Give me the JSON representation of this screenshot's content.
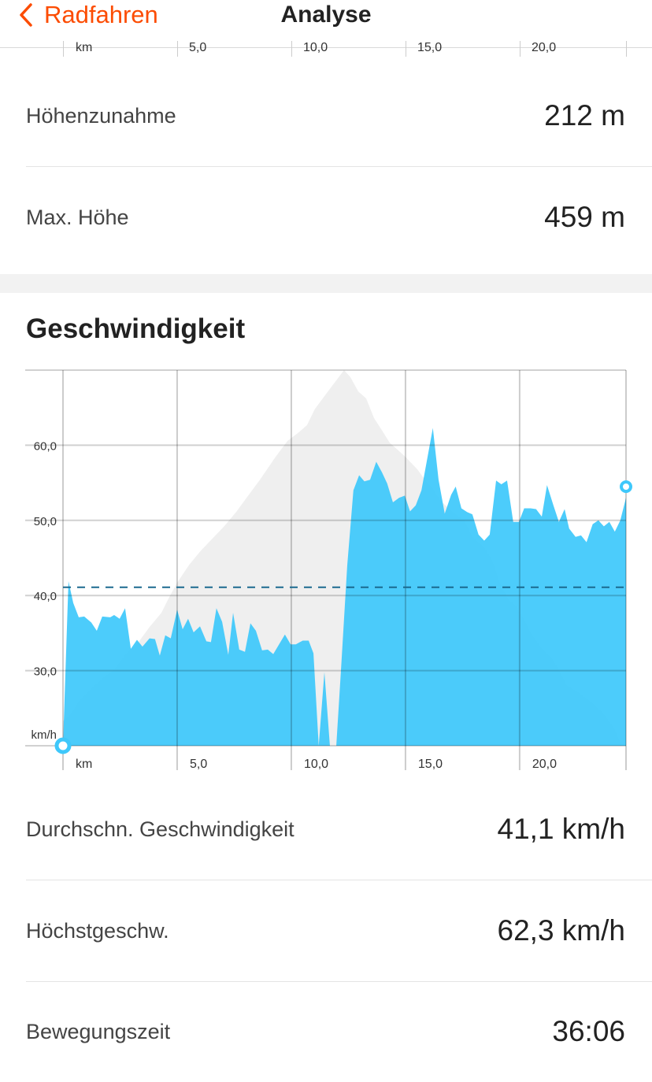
{
  "header": {
    "back_label": "Radfahren",
    "title": "Analyse",
    "back_icon": "chevron-left-icon",
    "accent_color": "#fc4c02"
  },
  "previous_chart_axis": {
    "x_tick_labels": [
      "km",
      "5,0",
      "10,0",
      "15,0",
      "20,0"
    ]
  },
  "elevation_stats": [
    {
      "label": "Höhenzunahme",
      "value": "212 m"
    },
    {
      "label": "Max. Höhe",
      "value": "459 m"
    }
  ],
  "speed_section": {
    "title": "Geschwindigkeit",
    "stats": [
      {
        "label": "Durchschn. Geschwindigkeit",
        "value": "41,1 km/h"
      },
      {
        "label": "Höchstgeschw.",
        "value": "62,3 km/h"
      },
      {
        "label": "Bewegungszeit",
        "value": "36:06"
      }
    ]
  },
  "chart_data": {
    "type": "area",
    "xlabel": "km",
    "ylabel": "km/h",
    "xlim": [
      0,
      24.66
    ],
    "ylim": [
      20,
      70
    ],
    "x_ticks": [
      0,
      5,
      10,
      15,
      20
    ],
    "x_tick_labels": [
      "km",
      "5,0",
      "10,0",
      "15,0",
      "20,0"
    ],
    "y_ticks": [
      20,
      30,
      40,
      50,
      60
    ],
    "y_tick_labels": [
      "km/h",
      "30,0",
      "40,0",
      "50,0",
      "60,0"
    ],
    "grid": true,
    "average_line": 41.1,
    "colors": {
      "speed": "#3ec8fb",
      "elevation": "#efefef",
      "average": "#1b6a8f"
    },
    "speed": {
      "x": [
        0,
        0.24,
        0.45,
        0.69,
        0.93,
        1.24,
        1.48,
        1.72,
        2.07,
        2.24,
        2.48,
        2.72,
        2.97,
        3.24,
        3.48,
        3.79,
        4.03,
        4.24,
        4.48,
        4.72,
        5,
        5.24,
        5.48,
        5.72,
        6,
        6.28,
        6.48,
        6.72,
        6.97,
        7.24,
        7.45,
        7.72,
        7.97,
        8.21,
        8.45,
        8.72,
        8.97,
        9.21,
        9.72,
        9.97,
        10.2,
        10.5,
        10.76,
        10.97,
        11.2,
        11.45,
        11.69,
        11.97,
        12.17,
        12.45,
        12.72,
        12.97,
        13.2,
        13.45,
        13.72,
        13.97,
        14.2,
        14.45,
        14.72,
        14.97,
        15.2,
        15.45,
        15.7,
        16.2,
        16.45,
        16.72,
        17,
        17.2,
        17.45,
        17.7,
        17.93,
        18.2,
        18.45,
        18.69,
        18.97,
        19.2,
        19.45,
        19.72,
        19.97,
        20.2,
        20.48,
        20.72,
        20.97,
        21.2,
        21.48,
        21.72,
        21.97,
        22.17,
        22.45,
        22.69,
        22.93,
        23.2,
        23.45,
        23.69,
        23.93,
        24.17,
        24.41,
        24.66
      ],
      "y": [
        20,
        41.9,
        39,
        37.1,
        37.2,
        36.4,
        35.3,
        37.2,
        37.1,
        37.4,
        36.9,
        38.3,
        32.9,
        34.1,
        33.2,
        34.3,
        34.2,
        32,
        34.7,
        34.3,
        38.1,
        35.5,
        36.9,
        35.1,
        35.9,
        33.9,
        33.8,
        38.3,
        36.5,
        32.1,
        37.7,
        32.8,
        32.5,
        36.3,
        35.3,
        32.7,
        32.8,
        32.2,
        34.8,
        33.5,
        33.5,
        34,
        34,
        32.3,
        20,
        29.8,
        20,
        20,
        29.8,
        44,
        54,
        56,
        55.2,
        55.4,
        57.8,
        56.4,
        54.9,
        52.4,
        53,
        53.3,
        51.2,
        52,
        54,
        62.3,
        55.4,
        50.9,
        53.4,
        54.5,
        51.6,
        51.1,
        50.8,
        48.1,
        47.3,
        48.1,
        55.3,
        54.8,
        55.3,
        49.8,
        49.8,
        51.6,
        51.6,
        51.5,
        50.5,
        54.7,
        52,
        49.8,
        51.5,
        48.9,
        47.8,
        48,
        47.1,
        49.5,
        50,
        49.2,
        49.8,
        48.5,
        50,
        53
      ]
    },
    "elevation_m": {
      "x": [
        0,
        0.34,
        0.69,
        1.21,
        1.72,
        2.24,
        2.76,
        3.28,
        3.79,
        4.31,
        4.66,
        5,
        5.52,
        6.03,
        6.55,
        7.07,
        7.59,
        8.1,
        8.62,
        9.31,
        9.83,
        10.34,
        10.69,
        11.03,
        11.55,
        11.9,
        12.31,
        12.59,
        12.93,
        13.28,
        13.62,
        13.97,
        14.31,
        14.66,
        15,
        15.52,
        15.86,
        16.21,
        16.55,
        17.07,
        17.59,
        17.93,
        18.45,
        18.79,
        19.14,
        19.48,
        19.83,
        20.17,
        20.52,
        21.03,
        21.38,
        21.72,
        22.07,
        22.59,
        23.1,
        23.62,
        24.14,
        24.48
      ],
      "y": [
        261,
        265,
        272,
        279,
        285,
        290,
        299,
        305,
        314,
        322,
        331,
        339,
        349,
        357,
        364,
        371,
        379,
        388,
        397,
        410,
        419,
        424,
        428,
        437,
        446,
        452,
        459,
        455,
        447,
        443,
        432,
        425,
        418,
        414,
        410,
        403,
        397,
        392,
        385,
        379,
        374,
        365,
        359,
        352,
        339,
        330,
        326,
        319,
        310,
        301,
        297,
        290,
        281,
        277,
        272,
        266,
        257,
        247
      ],
      "range": [
        247,
        459
      ]
    }
  }
}
